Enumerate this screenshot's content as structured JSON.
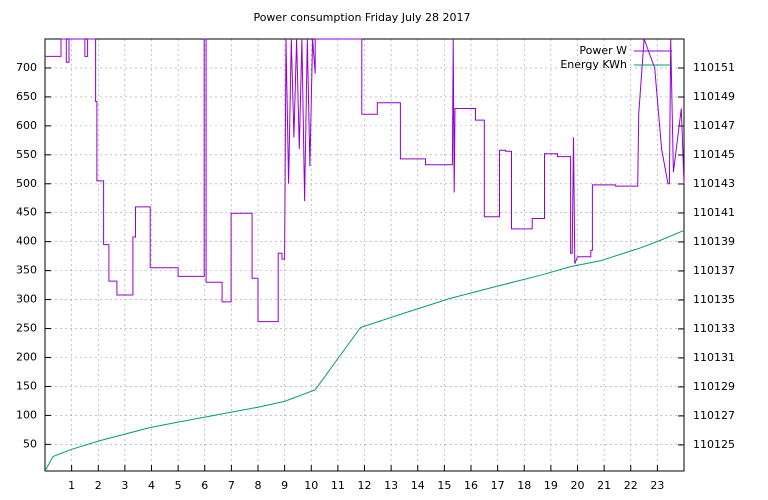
{
  "chart_data": {
    "type": "line",
    "title": "Power consumption Friday July 28 2017",
    "xlim": [
      0,
      24
    ],
    "xticks": [
      1,
      2,
      3,
      4,
      5,
      6,
      7,
      8,
      9,
      10,
      11,
      12,
      13,
      14,
      15,
      16,
      17,
      18,
      19,
      20,
      21,
      22,
      23
    ],
    "ylim": [
      4,
      750
    ],
    "yticks": [
      50,
      100,
      150,
      200,
      250,
      300,
      350,
      400,
      450,
      500,
      550,
      600,
      650,
      700
    ],
    "y2lim": [
      110123.2,
      110153
    ],
    "y2ticks": [
      110125,
      110127,
      110129,
      110131,
      110133,
      110135,
      110137,
      110139,
      110141,
      110143,
      110145,
      110147,
      110149,
      110151
    ],
    "grid": true,
    "legend": "top-right",
    "series": [
      {
        "name": "Power W",
        "color": "#9400d3",
        "x": [
          0,
          0.6,
          0.6,
          0.8,
          0.8,
          0.9,
          0.9,
          1.5,
          1.5,
          1.6,
          1.6,
          1.9,
          1.9,
          1.95,
          1.95,
          2.2,
          2.2,
          2.4,
          2.4,
          2.7,
          2.7,
          3.3,
          3.3,
          3.4,
          3.4,
          3.95,
          3.95,
          5.0,
          5.0,
          5.15,
          5.15,
          5.98,
          5.98,
          6.05,
          6.05,
          6.65,
          6.65,
          6.99,
          6.99,
          7.78,
          7.78,
          8.0,
          8.0,
          8.76,
          8.76,
          8.9,
          8.9,
          9.0,
          9.05,
          9.15,
          9.25,
          9.35,
          9.45,
          9.55,
          9.65,
          9.75,
          9.85,
          9.95,
          10.05,
          10.15,
          10.15,
          11.9,
          11.9,
          12.48,
          12.48,
          13.35,
          13.35,
          14.29,
          14.29,
          15.3,
          15.33,
          15.37,
          15.4,
          16.17,
          16.17,
          16.5,
          16.5,
          17.07,
          17.07,
          17.3,
          17.3,
          17.52,
          17.52,
          18.3,
          18.3,
          18.76,
          18.76,
          19.25,
          19.25,
          19.74,
          19.74,
          19.8,
          19.85,
          19.9,
          20.0,
          20.5,
          20.5,
          20.56,
          20.56,
          21.43,
          21.43,
          22.26,
          22.3,
          22.5,
          22.9,
          23.16,
          23.16,
          23.4,
          23.45,
          23.5,
          23.6,
          23.9,
          24
        ],
        "values": [
          720,
          720,
          750,
          750,
          710,
          710,
          750,
          750,
          720,
          720,
          750,
          750,
          642,
          642,
          505,
          505,
          395,
          395,
          332,
          332,
          308,
          308,
          408,
          408,
          460,
          460,
          355,
          355,
          340,
          340,
          340,
          340,
          750,
          750,
          330,
          330,
          296,
          296,
          449,
          449,
          337,
          337,
          262,
          262,
          380,
          380,
          370,
          370,
          750,
          500,
          750,
          580,
          750,
          560,
          750,
          470,
          750,
          530,
          750,
          690,
          750,
          750,
          620,
          620,
          640,
          640,
          543,
          543,
          533,
          533,
          750,
          485,
          630,
          630,
          610,
          610,
          443,
          443,
          558,
          558,
          556,
          556,
          422,
          422,
          440,
          440,
          552,
          552,
          547,
          547,
          380,
          380,
          580,
          362,
          374,
          374,
          385,
          385,
          498,
          498,
          496,
          496,
          620,
          750,
          700,
          560,
          560,
          500,
          500,
          750,
          520,
          630,
          500
        ]
      },
      {
        "name": "Energy KWh",
        "color": "#009e73",
        "axis": "y2",
        "x": [
          0,
          0.3,
          1.0,
          2.07,
          3.95,
          5.07,
          8.0,
          9.0,
          10.15,
          11.1,
          11.85,
          13.35,
          15.2,
          17.1,
          18.6,
          19.75,
          20.86,
          22.37,
          23.1,
          24
        ],
        "values": [
          110123.2,
          110124.2,
          110124.7,
          110125.3,
          110126.2,
          110126.6,
          110127.6,
          110128,
          110128.8,
          110131.2,
          110133.1,
          110134,
          110135.1,
          110136,
          110136.7,
          110137.3,
          110137.7,
          110138.6,
          110139.1,
          110139.8
        ]
      }
    ]
  }
}
